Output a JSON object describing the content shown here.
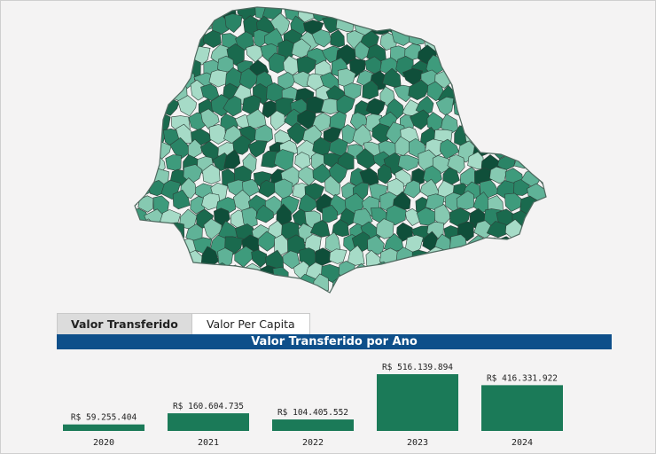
{
  "tabs": [
    {
      "label": "Valor Transferido",
      "active": true
    },
    {
      "label": "Valor Per Capita",
      "active": false
    }
  ],
  "chart_data": {
    "type": "bar",
    "title": "Valor Transferido por Ano",
    "categories": [
      "2020",
      "2021",
      "2022",
      "2023",
      "2024"
    ],
    "values": [
      59255404,
      160604735,
      104405552,
      516139894,
      416331922
    ],
    "data_labels": [
      "R$ 59.255.404",
      "R$ 160.604.735",
      "R$ 104.405.552",
      "R$ 516.139.894",
      "R$ 416.331.922"
    ],
    "bar_color": "#1b7a58",
    "ylim": [
      0,
      516139894
    ]
  },
  "map": {
    "palette": [
      "#0f4f3a",
      "#1a6a4e",
      "#2a8466",
      "#3e9b7c",
      "#5fb297",
      "#86c9b1",
      "#a6dbc7"
    ],
    "outline_color": "#2d3f38"
  },
  "colors": {
    "header_bg": "#0e4f8a",
    "active_tab_bg": "#dcdcdc"
  }
}
